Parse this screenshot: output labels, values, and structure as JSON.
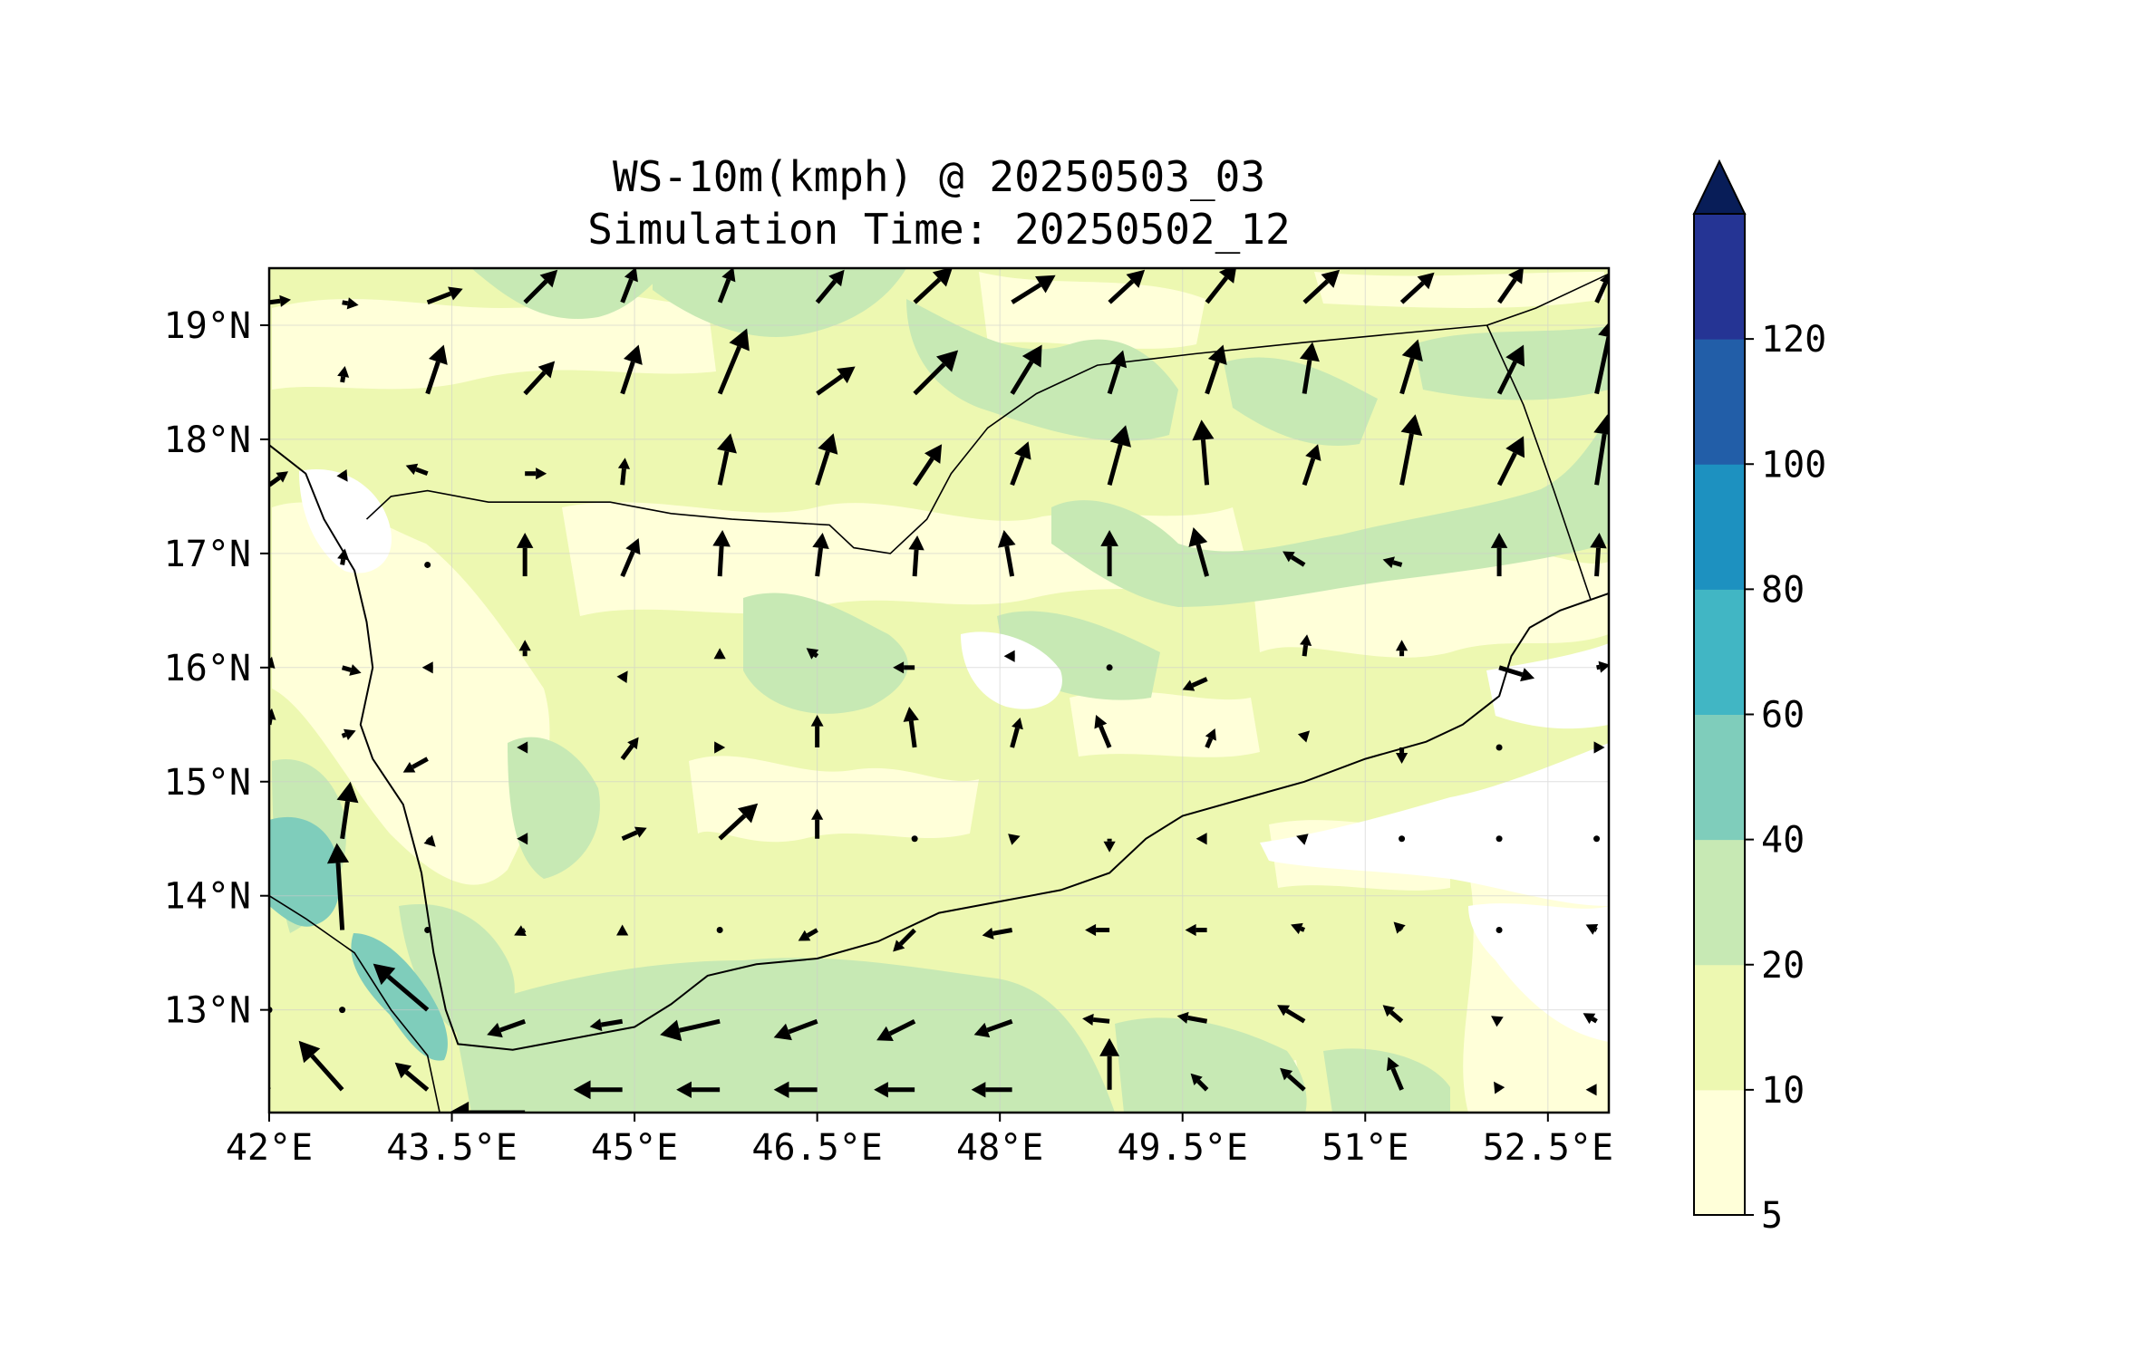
{
  "title": {
    "line1": "WS-10m(kmph) @ 20250503_03",
    "line2": "Simulation Time: 20250502_12"
  },
  "map": {
    "lon_range": [
      42.0,
      53.0
    ],
    "lat_range": [
      12.1,
      19.5
    ],
    "x_ticks": [
      {
        "value": 42.0,
        "label": "42°E"
      },
      {
        "value": 43.5,
        "label": "43.5°E"
      },
      {
        "value": 45.0,
        "label": "45°E"
      },
      {
        "value": 46.5,
        "label": "46.5°E"
      },
      {
        "value": 48.0,
        "label": "48°E"
      },
      {
        "value": 49.5,
        "label": "49.5°E"
      },
      {
        "value": 51.0,
        "label": "51°E"
      },
      {
        "value": 52.5,
        "label": "52.5°E"
      }
    ],
    "y_ticks": [
      {
        "value": 13,
        "label": "13°N"
      },
      {
        "value": 14,
        "label": "14°N"
      },
      {
        "value": 15,
        "label": "15°N"
      },
      {
        "value": 16,
        "label": "16°N"
      },
      {
        "value": 17,
        "label": "17°N"
      },
      {
        "value": 18,
        "label": "18°N"
      },
      {
        "value": 19,
        "label": "19°N"
      }
    ],
    "grid": true,
    "coastline": [
      [
        42.0,
        17.95
      ],
      [
        42.3,
        17.7
      ],
      [
        42.45,
        17.3
      ],
      [
        42.7,
        16.85
      ],
      [
        42.8,
        16.4
      ],
      [
        42.85,
        16.0
      ],
      [
        42.75,
        15.5
      ],
      [
        42.85,
        15.2
      ],
      [
        43.1,
        14.8
      ],
      [
        43.25,
        14.2
      ],
      [
        43.35,
        13.5
      ],
      [
        43.45,
        13.0
      ],
      [
        43.55,
        12.7
      ],
      [
        44.0,
        12.65
      ],
      [
        44.5,
        12.75
      ],
      [
        45.0,
        12.85
      ],
      [
        45.3,
        13.05
      ],
      [
        45.6,
        13.3
      ],
      [
        46.0,
        13.4
      ],
      [
        46.5,
        13.45
      ],
      [
        47.0,
        13.6
      ],
      [
        47.5,
        13.85
      ],
      [
        48.0,
        13.95
      ],
      [
        48.5,
        14.05
      ],
      [
        48.9,
        14.2
      ],
      [
        49.2,
        14.5
      ],
      [
        49.5,
        14.7
      ],
      [
        50.0,
        14.85
      ],
      [
        50.5,
        15.0
      ],
      [
        51.0,
        15.2
      ],
      [
        51.5,
        15.35
      ],
      [
        51.8,
        15.5
      ],
      [
        52.1,
        15.75
      ],
      [
        52.2,
        16.1
      ],
      [
        52.35,
        16.35
      ],
      [
        52.6,
        16.5
      ],
      [
        53.0,
        16.65
      ]
    ],
    "borders": [
      [
        [
          42.8,
          17.3
        ],
        [
          43.0,
          17.5
        ],
        [
          43.3,
          17.55
        ],
        [
          43.8,
          17.45
        ],
        [
          44.3,
          17.45
        ],
        [
          44.8,
          17.45
        ],
        [
          45.3,
          17.35
        ],
        [
          45.8,
          17.3
        ],
        [
          46.6,
          17.25
        ],
        [
          46.8,
          17.05
        ],
        [
          47.1,
          17.0
        ],
        [
          47.4,
          17.3
        ],
        [
          47.6,
          17.7
        ],
        [
          47.9,
          18.1
        ],
        [
          48.3,
          18.4
        ],
        [
          48.8,
          18.65
        ],
        [
          49.6,
          18.75
        ],
        [
          50.5,
          18.85
        ],
        [
          51.2,
          18.92
        ],
        [
          52.0,
          19.0
        ],
        [
          52.4,
          19.15
        ],
        [
          53.0,
          19.45
        ]
      ],
      [
        [
          52.0,
          19.0
        ],
        [
          52.3,
          18.3
        ],
        [
          52.55,
          17.55
        ],
        [
          52.85,
          16.6
        ]
      ],
      [
        [
          42.0,
          14.0
        ],
        [
          42.3,
          13.8
        ],
        [
          42.7,
          13.5
        ],
        [
          43.0,
          13.0
        ],
        [
          43.3,
          12.6
        ],
        [
          43.4,
          12.1
        ]
      ]
    ],
    "wind_vectors": [
      [
        42.0,
        19.2,
        0.8,
        0.1
      ],
      [
        42.6,
        19.2,
        0.6,
        -0.1
      ],
      [
        43.3,
        19.2,
        1.3,
        0.5
      ],
      [
        44.1,
        19.2,
        1.2,
        1.2
      ],
      [
        44.9,
        19.2,
        0.5,
        1.3
      ],
      [
        45.7,
        19.2,
        0.5,
        1.3
      ],
      [
        46.5,
        19.2,
        1.0,
        1.2
      ],
      [
        47.3,
        19.2,
        1.4,
        1.3
      ],
      [
        48.1,
        19.2,
        1.6,
        1.0
      ],
      [
        48.9,
        19.2,
        1.3,
        1.2
      ],
      [
        49.7,
        19.2,
        1.1,
        1.4
      ],
      [
        50.5,
        19.2,
        1.3,
        1.2
      ],
      [
        51.3,
        19.2,
        1.2,
        1.1
      ],
      [
        52.1,
        19.2,
        0.9,
        1.3
      ],
      [
        52.9,
        19.2,
        0.5,
        1.1
      ],
      [
        42.6,
        18.5,
        0.1,
        0.6
      ],
      [
        43.3,
        18.4,
        0.6,
        1.8
      ],
      [
        44.1,
        18.4,
        1.1,
        1.2
      ],
      [
        44.9,
        18.4,
        0.6,
        1.8
      ],
      [
        45.7,
        18.4,
        1.0,
        2.4
      ],
      [
        46.5,
        18.4,
        1.4,
        1.0
      ],
      [
        47.3,
        18.4,
        1.6,
        1.6
      ],
      [
        48.1,
        18.4,
        1.1,
        1.8
      ],
      [
        48.9,
        18.4,
        0.5,
        1.6
      ],
      [
        49.7,
        18.4,
        0.6,
        1.8
      ],
      [
        50.5,
        18.4,
        0.3,
        1.9
      ],
      [
        51.3,
        18.4,
        0.6,
        2.0
      ],
      [
        52.1,
        18.4,
        0.9,
        1.8
      ],
      [
        52.9,
        18.4,
        0.6,
        2.8
      ],
      [
        42.0,
        17.6,
        0.7,
        0.5
      ],
      [
        42.6,
        17.7,
        0.2,
        -0.3
      ],
      [
        43.3,
        17.7,
        -0.8,
        0.3
      ],
      [
        44.1,
        17.7,
        0.8,
        0.0
      ],
      [
        44.9,
        17.6,
        0.1,
        1.0
      ],
      [
        45.7,
        17.6,
        0.4,
        1.9
      ],
      [
        46.5,
        17.6,
        0.6,
        1.9
      ],
      [
        47.3,
        17.6,
        1.0,
        1.5
      ],
      [
        48.1,
        17.6,
        0.6,
        1.6
      ],
      [
        48.9,
        17.6,
        0.6,
        2.2
      ],
      [
        49.7,
        17.6,
        -0.2,
        2.4
      ],
      [
        50.5,
        17.6,
        0.5,
        1.5
      ],
      [
        51.3,
        17.6,
        0.5,
        2.6
      ],
      [
        52.1,
        17.6,
        0.9,
        1.8
      ],
      [
        52.9,
        17.6,
        0.4,
        2.6
      ],
      [
        42.6,
        16.9,
        0.1,
        0.6
      ],
      [
        43.3,
        16.9,
        0.0,
        0.1
      ],
      [
        44.1,
        16.8,
        0.0,
        1.6
      ],
      [
        44.9,
        16.8,
        0.6,
        1.4
      ],
      [
        45.7,
        16.8,
        0.1,
        1.7
      ],
      [
        46.5,
        16.8,
        0.2,
        1.6
      ],
      [
        47.3,
        16.8,
        0.1,
        1.5
      ],
      [
        48.1,
        16.8,
        -0.3,
        1.7
      ],
      [
        48.9,
        16.8,
        0.0,
        1.7
      ],
      [
        49.7,
        16.8,
        -0.5,
        1.8
      ],
      [
        50.5,
        16.9,
        -0.8,
        0.5
      ],
      [
        51.3,
        16.9,
        -0.7,
        0.2
      ],
      [
        52.1,
        16.8,
        0.0,
        1.6
      ],
      [
        52.9,
        16.8,
        0.1,
        1.6
      ],
      [
        42.0,
        16.0,
        0.1,
        0.4
      ],
      [
        42.6,
        16.0,
        0.7,
        -0.2
      ],
      [
        43.3,
        16.0,
        -0.2,
        0.0
      ],
      [
        44.1,
        16.1,
        0.0,
        0.6
      ],
      [
        44.9,
        15.9,
        0.2,
        0.3
      ],
      [
        45.7,
        16.1,
        0.0,
        0.3
      ],
      [
        46.5,
        16.1,
        -0.4,
        0.3
      ],
      [
        47.3,
        16.0,
        -0.8,
        0.0
      ],
      [
        48.1,
        16.1,
        -0.3,
        0.0
      ],
      [
        48.9,
        16.0,
        0.1,
        0.0
      ],
      [
        49.7,
        15.9,
        -0.9,
        -0.4
      ],
      [
        50.5,
        16.1,
        0.1,
        0.8
      ],
      [
        51.3,
        16.1,
        0.0,
        0.6
      ],
      [
        52.1,
        16.0,
        1.3,
        -0.4
      ],
      [
        52.9,
        16.0,
        0.5,
        0.1
      ],
      [
        42.0,
        15.5,
        0.1,
        0.6
      ],
      [
        42.6,
        15.4,
        0.5,
        0.2
      ],
      [
        43.3,
        15.2,
        -0.9,
        -0.5
      ],
      [
        44.1,
        15.3,
        -0.3,
        0.0
      ],
      [
        44.9,
        15.2,
        0.6,
        0.8
      ],
      [
        45.7,
        15.3,
        0.2,
        0.0
      ],
      [
        46.5,
        15.3,
        0.0,
        1.2
      ],
      [
        47.3,
        15.3,
        -0.2,
        1.5
      ],
      [
        48.1,
        15.3,
        0.3,
        1.1
      ],
      [
        48.9,
        15.3,
        -0.5,
        1.2
      ],
      [
        49.7,
        15.3,
        0.3,
        0.7
      ],
      [
        50.5,
        15.4,
        0.2,
        0.2
      ],
      [
        51.3,
        15.3,
        0.0,
        -0.6
      ],
      [
        52.1,
        15.3,
        -0.1,
        0.0
      ],
      [
        52.9,
        15.3,
        0.3,
        0.0
      ],
      [
        42.6,
        14.5,
        0.3,
        2.1
      ],
      [
        43.3,
        14.5,
        0.3,
        -0.3
      ],
      [
        44.1,
        14.5,
        -0.3,
        0.0
      ],
      [
        44.9,
        14.5,
        0.9,
        0.4
      ],
      [
        45.7,
        14.5,
        1.4,
        1.3
      ],
      [
        46.5,
        14.5,
        0.0,
        1.1
      ],
      [
        47.3,
        14.5,
        0.1,
        -0.1
      ],
      [
        48.1,
        14.5,
        0.3,
        0.1
      ],
      [
        48.9,
        14.5,
        0.0,
        -0.5
      ],
      [
        49.7,
        14.5,
        -0.4,
        0.0
      ],
      [
        50.5,
        14.5,
        -0.3,
        0.1
      ],
      [
        51.3,
        14.5,
        0.0,
        -0.1
      ],
      [
        52.1,
        14.5,
        0.0,
        0.0
      ],
      [
        52.9,
        14.5,
        -0.1,
        0.1
      ],
      [
        42.6,
        13.7,
        -0.2,
        3.2
      ],
      [
        43.3,
        13.7,
        0.0,
        -0.1
      ],
      [
        44.1,
        13.7,
        -0.4,
        -0.2
      ],
      [
        44.9,
        13.7,
        0.0,
        0.2
      ],
      [
        45.7,
        13.7,
        -0.1,
        0.0
      ],
      [
        46.5,
        13.7,
        -0.7,
        -0.4
      ],
      [
        47.3,
        13.7,
        -0.8,
        -0.8
      ],
      [
        48.1,
        13.7,
        -1.1,
        -0.2
      ],
      [
        48.9,
        13.7,
        -0.9,
        0.0
      ],
      [
        49.7,
        13.7,
        -0.8,
        0.0
      ],
      [
        50.5,
        13.7,
        -0.5,
        0.2
      ],
      [
        51.3,
        13.7,
        -0.3,
        0.3
      ],
      [
        52.1,
        13.7,
        0.0,
        0.1
      ],
      [
        52.9,
        13.7,
        -0.4,
        0.2
      ],
      [
        42.0,
        13.0,
        0.0,
        0.0
      ],
      [
        42.6,
        13.0,
        0.0,
        0.0
      ],
      [
        43.3,
        13.0,
        -2.0,
        1.7
      ],
      [
        44.1,
        12.9,
        -1.4,
        -0.5
      ],
      [
        44.9,
        12.9,
        -1.2,
        -0.2
      ],
      [
        45.7,
        12.9,
        -2.2,
        -0.5
      ],
      [
        46.5,
        12.9,
        -1.6,
        -0.6
      ],
      [
        47.3,
        12.9,
        -1.4,
        -0.7
      ],
      [
        48.1,
        12.9,
        -1.4,
        -0.5
      ],
      [
        48.9,
        12.9,
        -1.0,
        0.1
      ],
      [
        49.7,
        12.9,
        -1.1,
        0.2
      ],
      [
        50.5,
        12.9,
        -1.0,
        0.6
      ],
      [
        51.3,
        12.9,
        -0.7,
        0.6
      ],
      [
        52.1,
        12.9,
        -0.3,
        0.2
      ],
      [
        52.9,
        12.9,
        -0.5,
        0.3
      ],
      [
        42.0,
        12.3,
        -1.8,
        1.9
      ],
      [
        42.6,
        12.3,
        -1.6,
        1.8
      ],
      [
        43.3,
        12.3,
        -1.2,
        1.0
      ],
      [
        44.1,
        12.1,
        -2.8,
        0.0
      ],
      [
        44.9,
        12.3,
        -1.8,
        0.0
      ],
      [
        45.7,
        12.3,
        -1.6,
        0.0
      ],
      [
        46.5,
        12.3,
        -1.6,
        0.0
      ],
      [
        47.3,
        12.3,
        -1.5,
        0.0
      ],
      [
        48.1,
        12.3,
        -1.5,
        0.0
      ],
      [
        48.9,
        12.3,
        0.0,
        1.9
      ],
      [
        49.7,
        12.3,
        -0.6,
        0.6
      ],
      [
        50.5,
        12.3,
        -0.9,
        0.8
      ],
      [
        51.3,
        12.3,
        -0.5,
        1.2
      ],
      [
        52.1,
        12.3,
        -0.2,
        0.3
      ],
      [
        52.9,
        12.3,
        -0.4,
        0.0
      ]
    ]
  },
  "colorbar": {
    "levels": [
      5,
      10,
      20,
      40,
      60,
      80,
      100,
      120
    ],
    "labels": [
      "5",
      "10",
      "20",
      "40",
      "60",
      "80",
      "100",
      "120"
    ],
    "colors": [
      "#ffffd9",
      "#edf8b1",
      "#c7e9b4",
      "#7fcdbb",
      "#41b6c4",
      "#1d91c0",
      "#225ea8",
      "#253494"
    ],
    "extend_color": "#081d58"
  },
  "field_colors": {
    "lt5": "#ffffff",
    "5_10": "#ffffd9",
    "10_20": "#edf8b1",
    "20_40": "#c7e9b4",
    "40_60": "#7fcdbb"
  }
}
